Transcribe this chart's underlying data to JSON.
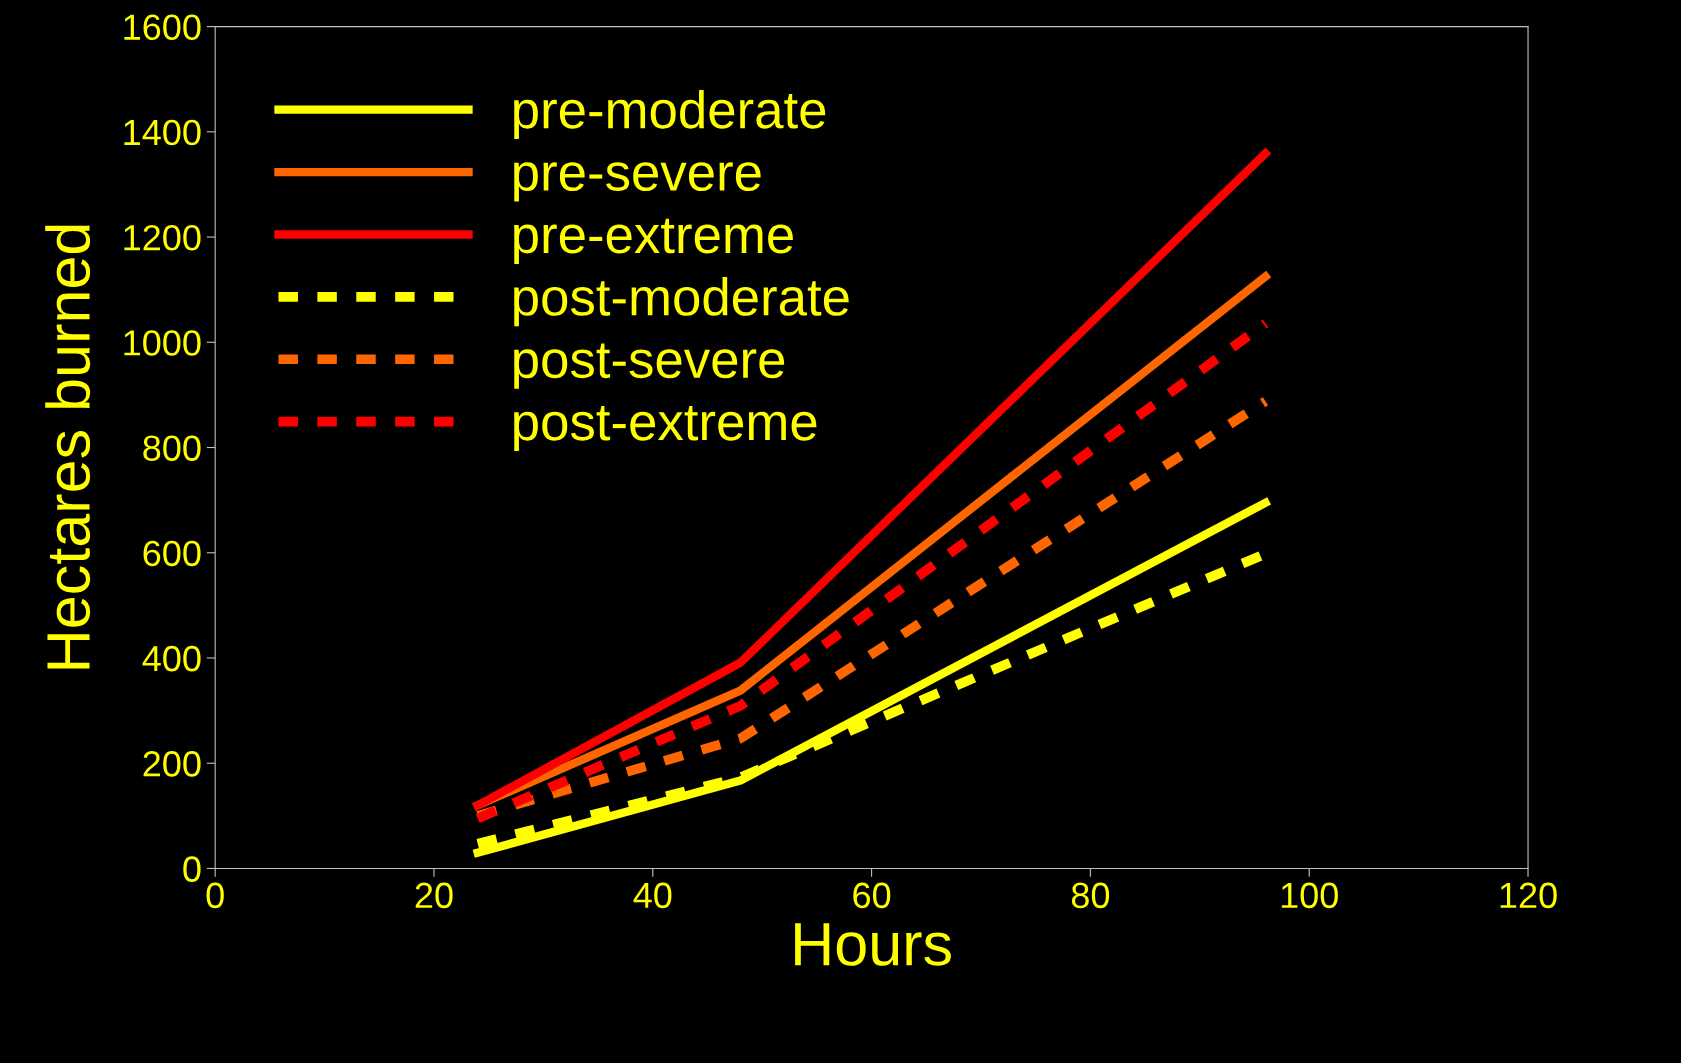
{
  "chart_data": {
    "type": "line",
    "xlabel": "Hours",
    "ylabel": "Hectares burned",
    "x": [
      24,
      48,
      96
    ],
    "xlim": [
      0,
      120
    ],
    "xticks": [
      0,
      20,
      40,
      60,
      80,
      100,
      120
    ],
    "ylim": [
      0,
      1600
    ],
    "yticks": [
      0,
      200,
      400,
      600,
      800,
      1000,
      1200,
      1400,
      1600
    ],
    "grid": false,
    "legend": "top left",
    "marker": "none",
    "series": [
      {
        "name": "pre-moderate",
        "color": "#ffff00",
        "line_style": "solid",
        "values": [
          30,
          167,
          695
        ]
      },
      {
        "name": "pre-severe",
        "color": "#ff6600",
        "line_style": "solid",
        "values": [
          120,
          338,
          1125
        ]
      },
      {
        "name": "pre-extreme",
        "color": "#ff0000",
        "line_style": "solid",
        "values": [
          120,
          391,
          1359
        ]
      },
      {
        "name": "post-moderate",
        "color": "#ffff00",
        "line_style": "dashed",
        "values": [
          47,
          173,
          598
        ]
      },
      {
        "name": "post-severe",
        "color": "#ff6600",
        "line_style": "dashed",
        "values": [
          100,
          247,
          888
        ]
      },
      {
        "name": "post-extreme",
        "color": "#ff0000",
        "line_style": "dashed",
        "values": [
          95,
          309,
          1036
        ]
      }
    ]
  }
}
